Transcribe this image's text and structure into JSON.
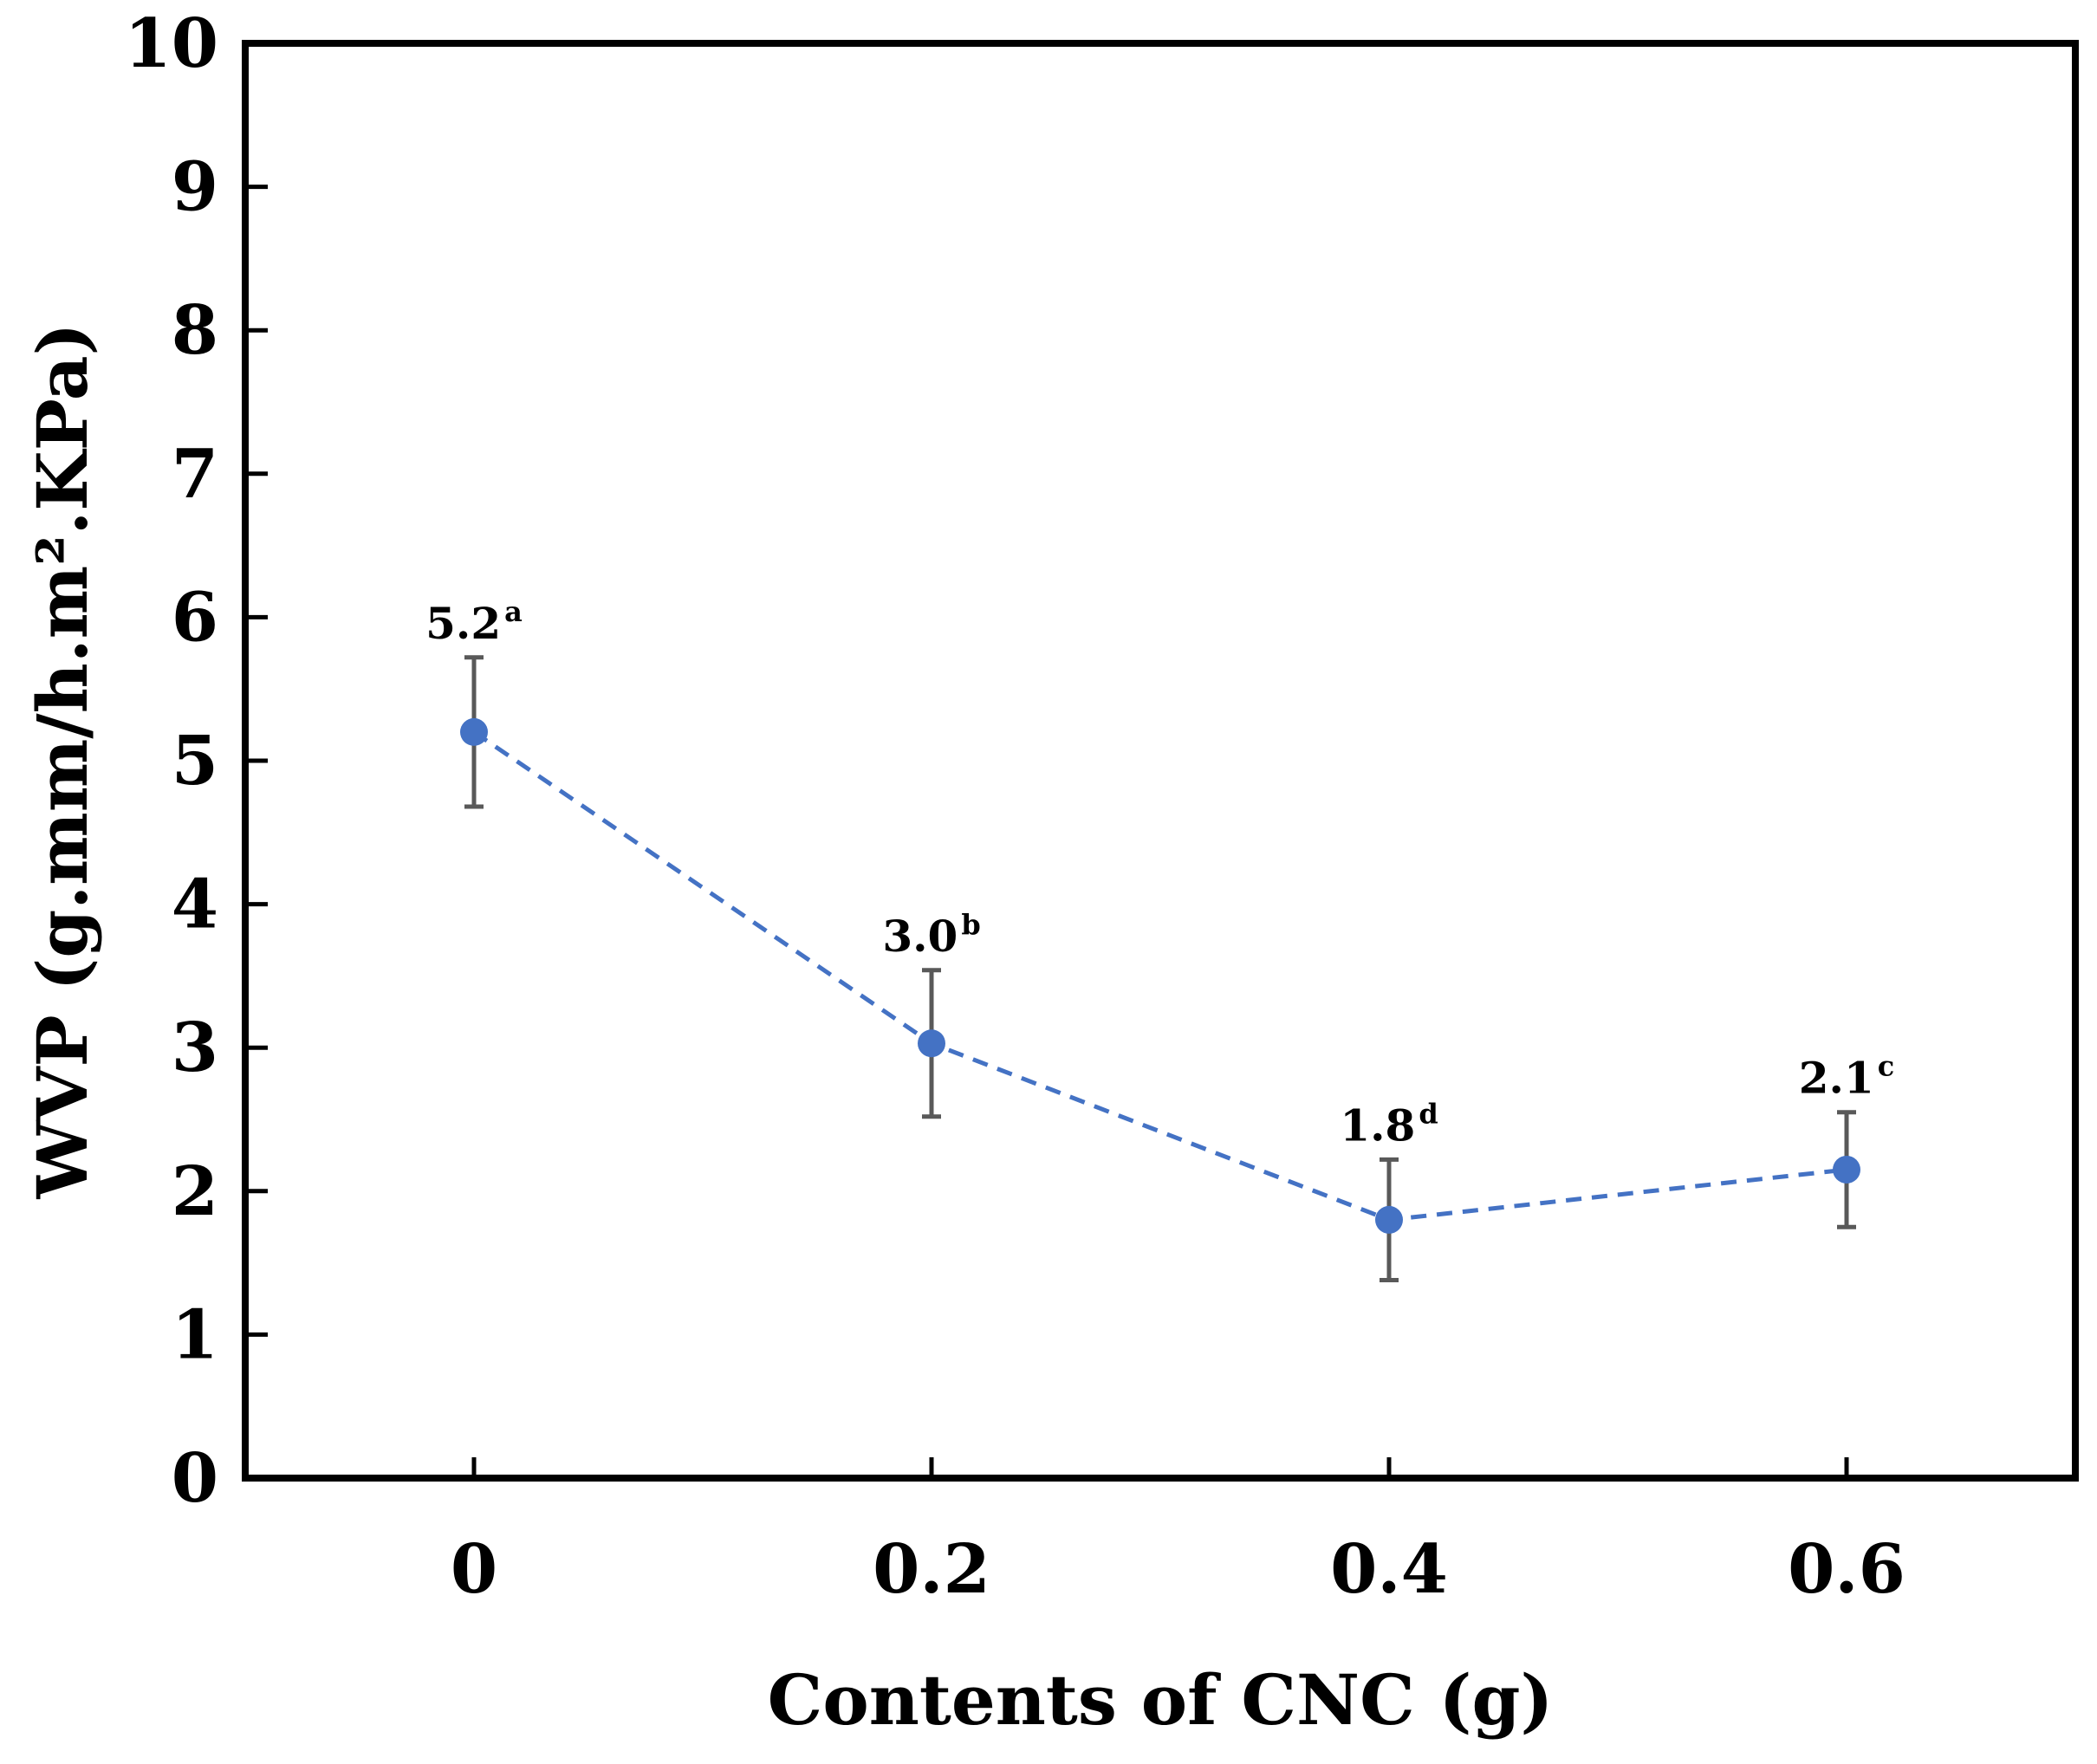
{
  "chart_data": {
    "type": "line",
    "xlabel": "Contents of CNC (g)",
    "ylabel": "WVP (g.mm/h.m².KPa)",
    "x_categories": [
      "0",
      "0.2",
      "0.4",
      "0.6"
    ],
    "x": [
      0,
      0.2,
      0.4,
      0.6
    ],
    "xlim": [
      -0.1,
      0.7
    ],
    "ylim": [
      0,
      10
    ],
    "y_ticks": [
      "0",
      "1",
      "2",
      "3",
      "4",
      "5",
      "6",
      "7",
      "8",
      "9",
      "10"
    ],
    "grid": false,
    "series": [
      {
        "name": "WVP",
        "color": "#4472C4",
        "line_style": "dashed",
        "values": [
          5.2,
          3.03,
          1.8,
          2.15
        ],
        "error": [
          0.52,
          0.51,
          0.42,
          0.4
        ],
        "labels": [
          {
            "value": "5.2",
            "letter": "a"
          },
          {
            "value": "3.0",
            "letter": "b"
          },
          {
            "value": "1.8",
            "letter": "d"
          },
          {
            "value": "2.1",
            "letter": "c"
          }
        ]
      }
    ],
    "errorbar_color": "#595959"
  }
}
